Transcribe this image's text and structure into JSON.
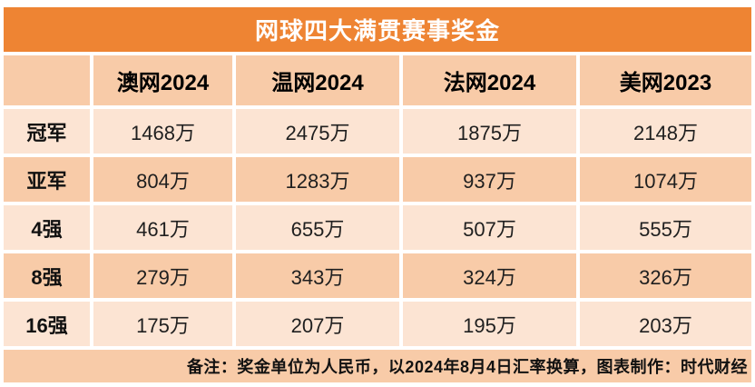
{
  "title": "网球四大满贯赛事奖金",
  "colors": {
    "title_bar": "#EE8433",
    "header_band": "#F8CBA8",
    "row_band_light": "#FCE4D3",
    "row_band_dark": "#F8CBA8",
    "footer_band": "#F8CBA8",
    "title_text": "#ffffff",
    "body_text": "#1f1f1f"
  },
  "table": {
    "corner": "",
    "columns": [
      "澳网2024",
      "温网2024",
      "法网2024",
      "美网2023"
    ],
    "rows": [
      {
        "label": "冠军",
        "values": [
          "1468万",
          "2475万",
          "1875万",
          "2148万"
        ]
      },
      {
        "label": "亚军",
        "values": [
          "804万",
          "1283万",
          "937万",
          "1074万"
        ]
      },
      {
        "label": "4强",
        "values": [
          "461万",
          "655万",
          "507万",
          "555万"
        ]
      },
      {
        "label": "8强",
        "values": [
          "279万",
          "343万",
          "324万",
          "326万"
        ]
      },
      {
        "label": "16强",
        "values": [
          "175万",
          "207万",
          "195万",
          "203万"
        ]
      }
    ]
  },
  "footer": {
    "note": "备注：奖金单位为人民币，以2024年8月4日汇率换算，图表制作：时代财经"
  },
  "chart_data": {
    "type": "table",
    "title": "网球四大满贯赛事奖金",
    "unit": "万人民币",
    "categories": [
      "澳网2024",
      "温网2024",
      "法网2024",
      "美网2023"
    ],
    "row_labels": [
      "冠军",
      "亚军",
      "4强",
      "8强",
      "16强"
    ],
    "series": [
      {
        "name": "冠军",
        "values": [
          1468,
          2475,
          1875,
          2148
        ]
      },
      {
        "name": "亚军",
        "values": [
          804,
          1283,
          937,
          1074
        ]
      },
      {
        "name": "4强",
        "values": [
          461,
          655,
          507,
          555
        ]
      },
      {
        "name": "8强",
        "values": [
          279,
          343,
          324,
          326
        ]
      },
      {
        "name": "16强",
        "values": [
          175,
          207,
          195,
          203
        ]
      }
    ],
    "annotations": [
      "备注：奖金单位为人民币，以2024年8月4日汇率换算，图表制作：时代财经"
    ]
  }
}
